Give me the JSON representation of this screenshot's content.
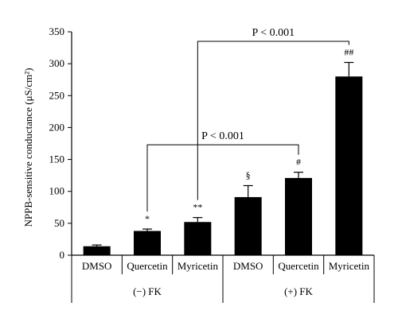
{
  "chart_data": {
    "type": "bar",
    "ylabel": "NPPB-sensitive conductance (μS/cm²)",
    "ylim": [
      0,
      350
    ],
    "yticks": [
      0,
      50,
      100,
      150,
      200,
      250,
      300,
      350
    ],
    "categories": [
      "DMSO",
      "Quercetin",
      "Myricetin",
      "DMSO",
      "Quercetin",
      "Myricetin"
    ],
    "values": [
      14,
      38,
      52,
      91,
      121,
      280
    ],
    "errors": [
      2,
      3,
      7,
      18,
      9,
      22
    ],
    "significance_marks": [
      "",
      "*",
      "**",
      "§",
      "#",
      "##"
    ],
    "groups": [
      {
        "label": "(−) FK",
        "categories": [
          0,
          1,
          2
        ]
      },
      {
        "label": "(+) FK",
        "categories": [
          3,
          4,
          5
        ]
      }
    ],
    "comparisons": [
      {
        "from": 1,
        "to": 4,
        "label": "P < 0.001",
        "level": 173
      },
      {
        "from": 2,
        "to": 5,
        "label": "P < 0.001",
        "level": 335
      }
    ],
    "bar_color": "#000000"
  }
}
